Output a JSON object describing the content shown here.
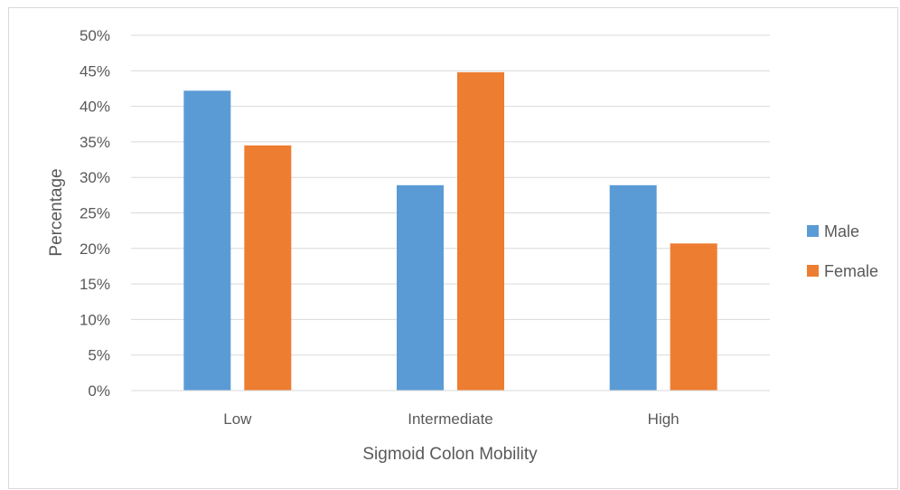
{
  "chart_data": {
    "type": "bar",
    "title": "",
    "xlabel": "Sigmoid Colon Mobility",
    "ylabel": "Percentage",
    "categories": [
      "Low",
      "Intermediate",
      "High"
    ],
    "series": [
      {
        "name": "Male",
        "values": [
          42.2,
          28.9,
          28.9
        ],
        "color": "#5b9bd5"
      },
      {
        "name": "Female",
        "values": [
          34.5,
          44.8,
          20.7
        ],
        "color": "#ed7d31"
      }
    ],
    "ylim": [
      0,
      50
    ],
    "ytick_step": 5,
    "ytick_labels": [
      "0%",
      "5%",
      "10%",
      "15%",
      "20%",
      "25%",
      "30%",
      "35%",
      "40%",
      "45%",
      "50%"
    ],
    "grid": true,
    "legend_position": "right",
    "gridline_color": "#d9d9d9"
  }
}
